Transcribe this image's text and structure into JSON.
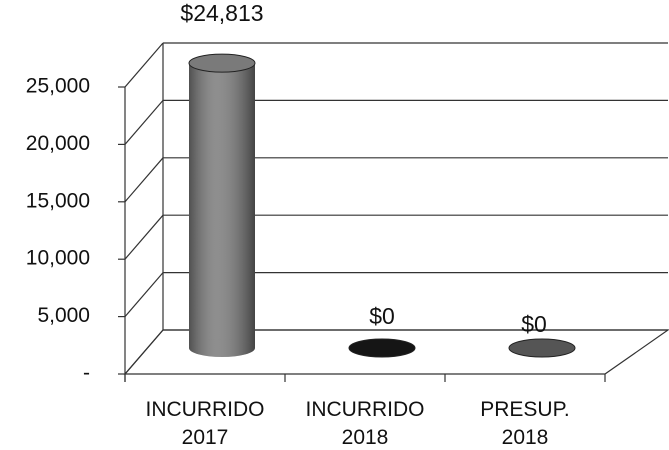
{
  "chart_data": {
    "type": "bar",
    "categories": [
      "INCURRIDO 2017",
      "INCURRIDO 2018",
      "PRESUP. 2018"
    ],
    "values": [
      24813,
      0,
      0
    ],
    "value_labels": [
      "$24,813",
      "$0",
      "$0"
    ],
    "colors": [
      "#7a7a7a",
      "#151515",
      "#555555"
    ],
    "ylim": [
      0,
      25000
    ],
    "yticks": [
      {
        "value": 0,
        "label": "-"
      },
      {
        "value": 5000,
        "label": "5,000"
      },
      {
        "value": 10000,
        "label": "10,000"
      },
      {
        "value": 15000,
        "label": "15,000"
      },
      {
        "value": 20000,
        "label": "20,000"
      },
      {
        "value": 25000,
        "label": "25,000"
      }
    ],
    "grid": true
  }
}
